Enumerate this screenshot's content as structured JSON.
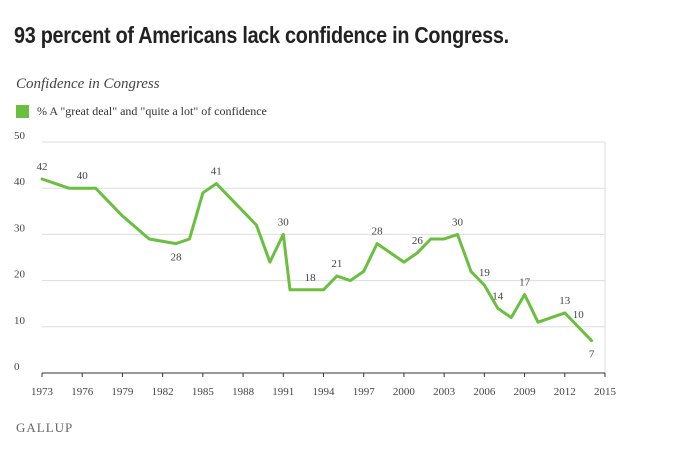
{
  "headline": "93 percent of Americans lack confidence in Congress.",
  "brand": "GALLUP",
  "colors": {
    "line": "#6abf3f",
    "grid": "#dddddd",
    "axis": "#333333",
    "text": "#444444"
  },
  "chart_data": {
    "type": "line",
    "title": "Confidence in Congress",
    "xlabel": "",
    "ylabel": "",
    "xlim": [
      1973,
      2015
    ],
    "ylim": [
      0,
      50
    ],
    "grid": true,
    "legend_position": "top-left",
    "yticks": [
      "0",
      "10",
      "20",
      "30",
      "40",
      "50"
    ],
    "xticks": [
      "1973",
      "1976",
      "1979",
      "1982",
      "1985",
      "1988",
      "1991",
      "1994",
      "1997",
      "2000",
      "2003",
      "2006",
      "2009",
      "2012",
      "2015"
    ],
    "series": [
      {
        "name": "% A \"great deal\" and \"quite a lot\" of confidence",
        "x": [
          1973,
          1974,
          1975,
          1976,
          1977,
          1979,
          1981,
          1983,
          1984,
          1985,
          1986,
          1988,
          1989,
          1990,
          1991,
          1991.5,
          1993,
          1994,
          1995,
          1996,
          1997,
          1998,
          1999,
          2000,
          2001,
          2002,
          2003,
          2004,
          2005,
          2006,
          2007,
          2008,
          2009,
          2010,
          2011,
          2012,
          2013,
          2014
        ],
        "values": [
          42,
          41,
          40,
          40,
          40,
          34,
          29,
          28,
          29,
          39,
          41,
          35,
          32,
          24,
          30,
          18,
          18,
          18,
          21,
          20,
          22,
          28,
          26,
          24,
          26,
          29,
          29,
          30,
          22,
          19,
          14,
          12,
          17,
          11,
          12,
          13,
          10,
          7
        ]
      }
    ],
    "annotations": [
      {
        "x": 1973,
        "y": 42,
        "label": "42"
      },
      {
        "x": 1976,
        "y": 40,
        "label": "40"
      },
      {
        "x": 1983,
        "y": 28,
        "label": "28"
      },
      {
        "x": 1986,
        "y": 41,
        "label": "41"
      },
      {
        "x": 1991,
        "y": 30,
        "label": "30"
      },
      {
        "x": 1993,
        "y": 18,
        "label": "18"
      },
      {
        "x": 1995,
        "y": 21,
        "label": "21"
      },
      {
        "x": 1998,
        "y": 28,
        "label": "28"
      },
      {
        "x": 2001,
        "y": 26,
        "label": "26"
      },
      {
        "x": 2004,
        "y": 30,
        "label": "30"
      },
      {
        "x": 2006,
        "y": 19,
        "label": "19"
      },
      {
        "x": 2007,
        "y": 14,
        "label": "14"
      },
      {
        "x": 2009,
        "y": 17,
        "label": "17"
      },
      {
        "x": 2012,
        "y": 13,
        "label": "13"
      },
      {
        "x": 2013,
        "y": 10,
        "label": "10"
      },
      {
        "x": 2014,
        "y": 7,
        "label": "7"
      }
    ]
  }
}
